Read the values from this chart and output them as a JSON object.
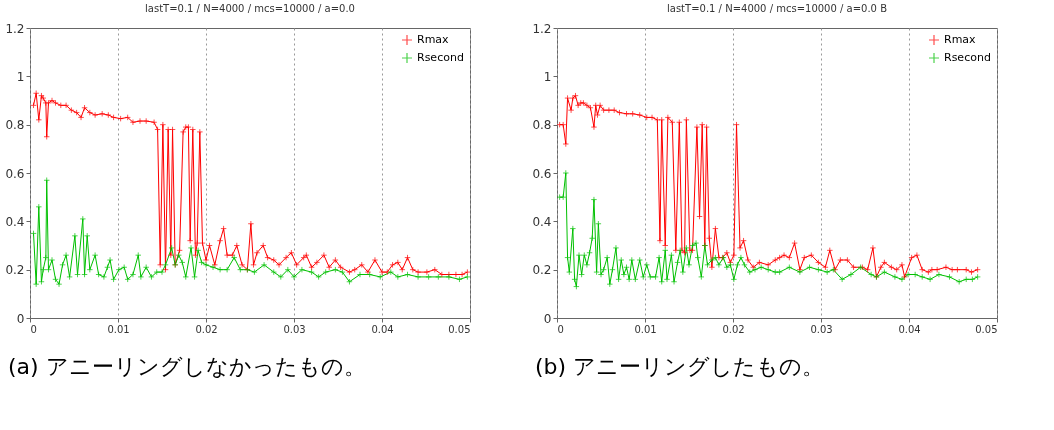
{
  "chart_data": [
    {
      "type": "line",
      "title": "lastT=0.1 / N=4000 / mcs=10000 / a=0.0",
      "annotations": [
        "(a) アニーリングしなかったもの。"
      ],
      "xlim": [
        0,
        0.05
      ],
      "xticks": [
        0,
        0.01,
        0.02,
        0.03,
        0.04,
        0.05
      ],
      "ylim": [
        0,
        1.2
      ],
      "yticks": [
        0,
        0.2,
        0.4,
        0.6,
        0.8,
        1,
        1.2
      ],
      "grid": "x",
      "legend": "top right",
      "line_style": "solid",
      "series": [
        {
          "name": "Rmax",
          "color": "#ff0000",
          "marker": "cross",
          "x": [
            0.0004,
            0.0007,
            0.001,
            0.0013,
            0.0015,
            0.0018,
            0.0019,
            0.0021,
            0.0025,
            0.0029,
            0.0035,
            0.0041,
            0.0047,
            0.0053,
            0.0058,
            0.0062,
            0.0068,
            0.0074,
            0.0082,
            0.0089,
            0.0095,
            0.0103,
            0.0111,
            0.0117,
            0.0125,
            0.0132,
            0.0141,
            0.0145,
            0.0148,
            0.0151,
            0.0154,
            0.0157,
            0.016,
            0.0162,
            0.0165,
            0.017,
            0.0174,
            0.0177,
            0.018,
            0.0182,
            0.0185,
            0.0188,
            0.019,
            0.0193,
            0.0196,
            0.02,
            0.0204,
            0.021,
            0.0216,
            0.022,
            0.0224,
            0.023,
            0.0235,
            0.0241,
            0.0247,
            0.0251,
            0.0254,
            0.0258,
            0.0265,
            0.027,
            0.0277,
            0.0283,
            0.0291,
            0.0297,
            0.0303,
            0.0311,
            0.0314,
            0.032,
            0.0326,
            0.0334,
            0.034,
            0.0347,
            0.0353,
            0.0363,
            0.0369,
            0.0377,
            0.0384,
            0.0392,
            0.04,
            0.0406,
            0.0412,
            0.0418,
            0.0423,
            0.0429,
            0.0435,
            0.0441,
            0.0451,
            0.046,
            0.0468,
            0.0476,
            0.0484,
            0.0491,
            0.0497
          ],
          "values": [
            0.88,
            0.93,
            0.82,
            0.92,
            0.91,
            0.89,
            0.75,
            0.89,
            0.9,
            0.89,
            0.88,
            0.88,
            0.86,
            0.85,
            0.83,
            0.87,
            0.85,
            0.84,
            0.845,
            0.84,
            0.83,
            0.825,
            0.83,
            0.81,
            0.815,
            0.815,
            0.81,
            0.78,
            0.22,
            0.8,
            0.2,
            0.78,
            0.26,
            0.78,
            0.22,
            0.28,
            0.77,
            0.79,
            0.79,
            0.32,
            0.78,
            0.26,
            0.31,
            0.77,
            0.31,
            0.24,
            0.3,
            0.22,
            0.32,
            0.37,
            0.26,
            0.26,
            0.3,
            0.22,
            0.2,
            0.39,
            0.22,
            0.27,
            0.3,
            0.25,
            0.24,
            0.22,
            0.25,
            0.27,
            0.22,
            0.25,
            0.26,
            0.21,
            0.23,
            0.26,
            0.21,
            0.24,
            0.21,
            0.19,
            0.2,
            0.22,
            0.19,
            0.24,
            0.19,
            0.19,
            0.22,
            0.23,
            0.2,
            0.25,
            0.2,
            0.19,
            0.19,
            0.2,
            0.18,
            0.18,
            0.18,
            0.18,
            0.19
          ]
        },
        {
          "name": "Rsecond",
          "color": "#00c000",
          "marker": "cross",
          "x": [
            0.0004,
            0.0007,
            0.001,
            0.0013,
            0.0015,
            0.0018,
            0.0019,
            0.0021,
            0.0025,
            0.0029,
            0.0033,
            0.0037,
            0.0041,
            0.0045,
            0.0051,
            0.0054,
            0.006,
            0.0062,
            0.0065,
            0.0068,
            0.0074,
            0.0078,
            0.0084,
            0.0088,
            0.0091,
            0.0095,
            0.0101,
            0.0107,
            0.0111,
            0.0117,
            0.0123,
            0.0126,
            0.0132,
            0.0138,
            0.0144,
            0.015,
            0.0154,
            0.0161,
            0.0165,
            0.0169,
            0.0173,
            0.0177,
            0.0183,
            0.0187,
            0.0191,
            0.0195,
            0.02,
            0.0208,
            0.0216,
            0.0224,
            0.0232,
            0.0239,
            0.0247,
            0.0255,
            0.0266,
            0.0277,
            0.0285,
            0.0293,
            0.03,
            0.0309,
            0.032,
            0.0328,
            0.0336,
            0.0347,
            0.0355,
            0.0363,
            0.0375,
            0.0386,
            0.0398,
            0.041,
            0.0418,
            0.0429,
            0.0441,
            0.0453,
            0.0464,
            0.0476,
            0.0488,
            0.0497
          ],
          "values": [
            0.35,
            0.14,
            0.46,
            0.15,
            0.2,
            0.25,
            0.57,
            0.2,
            0.24,
            0.16,
            0.14,
            0.22,
            0.26,
            0.17,
            0.34,
            0.18,
            0.41,
            0.18,
            0.34,
            0.2,
            0.26,
            0.18,
            0.17,
            0.21,
            0.24,
            0.16,
            0.2,
            0.21,
            0.16,
            0.18,
            0.26,
            0.17,
            0.21,
            0.17,
            0.19,
            0.19,
            0.22,
            0.29,
            0.22,
            0.26,
            0.23,
            0.17,
            0.29,
            0.17,
            0.28,
            0.23,
            0.22,
            0.21,
            0.2,
            0.2,
            0.25,
            0.2,
            0.2,
            0.19,
            0.22,
            0.19,
            0.17,
            0.2,
            0.17,
            0.2,
            0.19,
            0.17,
            0.19,
            0.2,
            0.19,
            0.15,
            0.18,
            0.18,
            0.17,
            0.19,
            0.17,
            0.18,
            0.17,
            0.17,
            0.17,
            0.17,
            0.16,
            0.17
          ]
        }
      ]
    },
    {
      "type": "line",
      "title": "lastT=0.1 / N=4000 / mcs=10000 / a=0.0  B",
      "annotations": [
        "(b) アニーリングしたもの。"
      ],
      "xlim": [
        0,
        0.05
      ],
      "xticks": [
        0,
        0.01,
        0.02,
        0.03,
        0.04,
        0.05
      ],
      "ylim": [
        0,
        1.2
      ],
      "yticks": [
        0,
        0.2,
        0.4,
        0.6,
        0.8,
        1,
        1.2
      ],
      "grid": "x",
      "legend": "top right",
      "line_style": "solid",
      "series": [
        {
          "name": "Rmax",
          "color": "#ff0000",
          "marker": "cross",
          "x": [
            0.0003,
            0.0007,
            0.001,
            0.0012,
            0.0016,
            0.0018,
            0.0021,
            0.0024,
            0.0027,
            0.003,
            0.0034,
            0.0038,
            0.0042,
            0.0044,
            0.0046,
            0.0049,
            0.0053,
            0.0059,
            0.0065,
            0.0071,
            0.0079,
            0.0086,
            0.0094,
            0.0102,
            0.0108,
            0.0114,
            0.0117,
            0.0119,
            0.0123,
            0.0126,
            0.0131,
            0.0135,
            0.0139,
            0.0142,
            0.0145,
            0.0147,
            0.0151,
            0.0154,
            0.0159,
            0.0162,
            0.0165,
            0.0168,
            0.017,
            0.0173,
            0.0176,
            0.018,
            0.0184,
            0.0188,
            0.0193,
            0.0197,
            0.0201,
            0.0204,
            0.0208,
            0.0212,
            0.0217,
            0.0223,
            0.023,
            0.024,
            0.0248,
            0.0253,
            0.0258,
            0.0264,
            0.027,
            0.0276,
            0.0281,
            0.0289,
            0.0297,
            0.0305,
            0.031,
            0.0316,
            0.0322,
            0.033,
            0.0337,
            0.0347,
            0.0353,
            0.0359,
            0.0363,
            0.0368,
            0.0372,
            0.038,
            0.0386,
            0.0392,
            0.0395,
            0.0403,
            0.0409,
            0.0415,
            0.0422,
            0.0426,
            0.0432,
            0.0442,
            0.0449,
            0.0455,
            0.0465,
            0.0471,
            0.0478
          ],
          "values": [
            0.8,
            0.8,
            0.72,
            0.91,
            0.86,
            0.91,
            0.92,
            0.88,
            0.89,
            0.89,
            0.88,
            0.87,
            0.79,
            0.88,
            0.84,
            0.88,
            0.86,
            0.86,
            0.86,
            0.85,
            0.845,
            0.845,
            0.84,
            0.83,
            0.83,
            0.82,
            0.32,
            0.82,
            0.3,
            0.83,
            0.81,
            0.28,
            0.81,
            0.28,
            0.27,
            0.82,
            0.28,
            0.28,
            0.79,
            0.42,
            0.8,
            0.3,
            0.79,
            0.33,
            0.21,
            0.37,
            0.25,
            0.25,
            0.27,
            0.23,
            0.26,
            0.8,
            0.29,
            0.32,
            0.24,
            0.21,
            0.23,
            0.22,
            0.24,
            0.25,
            0.26,
            0.25,
            0.31,
            0.2,
            0.25,
            0.26,
            0.23,
            0.21,
            0.28,
            0.2,
            0.24,
            0.24,
            0.21,
            0.21,
            0.2,
            0.29,
            0.17,
            0.21,
            0.23,
            0.21,
            0.2,
            0.22,
            0.17,
            0.25,
            0.26,
            0.2,
            0.19,
            0.2,
            0.2,
            0.21,
            0.2,
            0.2,
            0.2,
            0.19,
            0.2
          ]
        },
        {
          "name": "Rsecond",
          "color": "#00c000",
          "marker": "cross",
          "x": [
            0.0003,
            0.0007,
            0.001,
            0.0012,
            0.0014,
            0.0018,
            0.002,
            0.0022,
            0.0025,
            0.0028,
            0.0031,
            0.0034,
            0.0037,
            0.004,
            0.0042,
            0.0045,
            0.0047,
            0.005,
            0.0053,
            0.0057,
            0.006,
            0.0063,
            0.0067,
            0.007,
            0.0073,
            0.0076,
            0.0079,
            0.0082,
            0.0085,
            0.0089,
            0.0094,
            0.0098,
            0.0102,
            0.0106,
            0.0112,
            0.0116,
            0.0119,
            0.0123,
            0.0125,
            0.013,
            0.0133,
            0.0137,
            0.014,
            0.0143,
            0.0147,
            0.015,
            0.0154,
            0.0158,
            0.016,
            0.0164,
            0.0168,
            0.0171,
            0.0176,
            0.018,
            0.0184,
            0.0189,
            0.0193,
            0.0197,
            0.0201,
            0.0205,
            0.0209,
            0.0213,
            0.0219,
            0.0225,
            0.0232,
            0.024,
            0.0248,
            0.0253,
            0.0264,
            0.0276,
            0.0287,
            0.0297,
            0.0307,
            0.0314,
            0.0324,
            0.0334,
            0.0345,
            0.0357,
            0.0363,
            0.0372,
            0.0384,
            0.0392,
            0.0399,
            0.0407,
            0.0415,
            0.0424,
            0.0434,
            0.0446,
            0.0457,
            0.0465,
            0.0472,
            0.0478
          ],
          "values": [
            0.5,
            0.5,
            0.6,
            0.25,
            0.19,
            0.37,
            0.16,
            0.13,
            0.26,
            0.18,
            0.26,
            0.22,
            0.27,
            0.33,
            0.49,
            0.19,
            0.39,
            0.18,
            0.2,
            0.25,
            0.14,
            0.2,
            0.29,
            0.16,
            0.24,
            0.18,
            0.21,
            0.16,
            0.24,
            0.16,
            0.24,
            0.17,
            0.22,
            0.17,
            0.17,
            0.25,
            0.15,
            0.28,
            0.16,
            0.26,
            0.15,
            0.23,
            0.28,
            0.19,
            0.29,
            0.22,
            0.3,
            0.31,
            0.25,
            0.17,
            0.3,
            0.22,
            0.24,
            0.25,
            0.22,
            0.25,
            0.21,
            0.22,
            0.16,
            0.22,
            0.25,
            0.22,
            0.19,
            0.2,
            0.21,
            0.2,
            0.19,
            0.19,
            0.21,
            0.19,
            0.21,
            0.2,
            0.19,
            0.2,
            0.16,
            0.18,
            0.21,
            0.18,
            0.17,
            0.19,
            0.17,
            0.16,
            0.18,
            0.18,
            0.17,
            0.16,
            0.18,
            0.17,
            0.15,
            0.16,
            0.16,
            0.17
          ]
        }
      ]
    }
  ]
}
